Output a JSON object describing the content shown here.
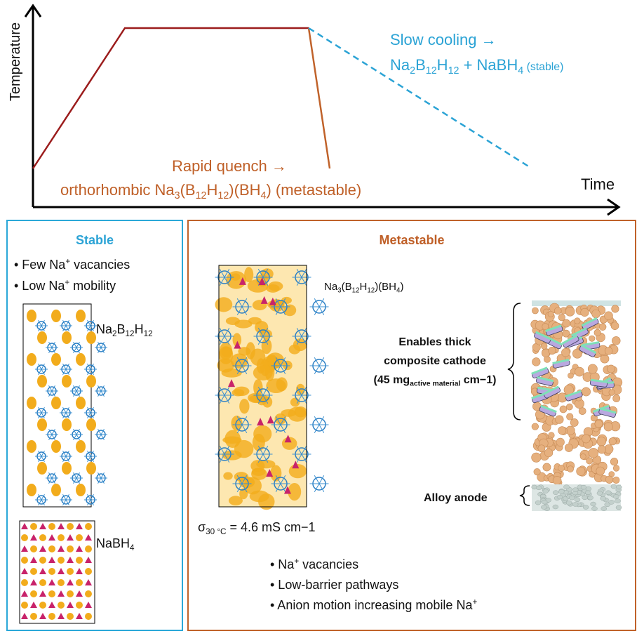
{
  "plot": {
    "y_axis_label": "Temperature",
    "x_axis_label": "Time",
    "slow_cooling": {
      "line1": "Slow cooling →",
      "line2": [
        {
          "text": "Na"
        },
        {
          "sub": "2"
        },
        {
          "text": "B"
        },
        {
          "sub": "12"
        },
        {
          "text": "H"
        },
        {
          "sub": "12"
        },
        {
          "text": " + NaBH"
        },
        {
          "sub": "4"
        },
        {
          "small": " (stable)"
        }
      ]
    },
    "rapid_quench": {
      "line1": "Rapid quench →",
      "line2": [
        {
          "text": "orthorhombic Na"
        },
        {
          "sub": "3"
        },
        {
          "text": "(B"
        },
        {
          "sub": "12"
        },
        {
          "text": "H"
        },
        {
          "sub": "12"
        },
        {
          "text": ")(BH"
        },
        {
          "sub": "4"
        },
        {
          "text": ") (metastable)"
        }
      ]
    }
  },
  "stable_panel": {
    "title": "Stable",
    "bullets": [
      [
        {
          "text": "• Few Na"
        },
        {
          "sup": "+"
        },
        {
          "text": " vacancies"
        }
      ],
      [
        {
          "text": "• Low Na"
        },
        {
          "sup": "+"
        },
        {
          "text": " mobility"
        }
      ]
    ],
    "structures": [
      {
        "label": [
          {
            "text": "Na"
          },
          {
            "sub": "2"
          },
          {
            "text": "B"
          },
          {
            "sub": "12"
          },
          {
            "text": "H"
          },
          {
            "sub": "12"
          }
        ]
      },
      {
        "label": [
          {
            "text": "NaBH"
          },
          {
            "sub": "4"
          }
        ]
      }
    ]
  },
  "metastable_panel": {
    "title": "Metastable",
    "structure_label": [
      {
        "text": "Na"
      },
      {
        "sub": "3"
      },
      {
        "text": "(B"
      },
      {
        "sub": "12"
      },
      {
        "text": "H"
      },
      {
        "sub": "12"
      },
      {
        "text": ")(BH"
      },
      {
        "sub": "4"
      },
      {
        "text": ")"
      }
    ],
    "cathode_note": {
      "line1": "Enables thick",
      "line2": "composite cathode",
      "line3": [
        {
          "text": "(45 mg"
        },
        {
          "sub": "active material"
        },
        {
          "text": " cm−1)"
        }
      ]
    },
    "anode_label": "Alloy anode",
    "conductivity": [
      {
        "text": "σ"
      },
      {
        "sub": "30 °C"
      },
      {
        "text": " = 4.6 mS cm−1"
      }
    ],
    "bullets": [
      [
        {
          "text": "• Na"
        },
        {
          "sup": "+"
        },
        {
          "text": " vacancies"
        }
      ],
      [
        {
          "text": "• Low-barrier pathways"
        }
      ],
      [
        {
          "text": "• Anion motion increasing mobile Na"
        },
        {
          "sup": "+"
        }
      ]
    ]
  }
}
